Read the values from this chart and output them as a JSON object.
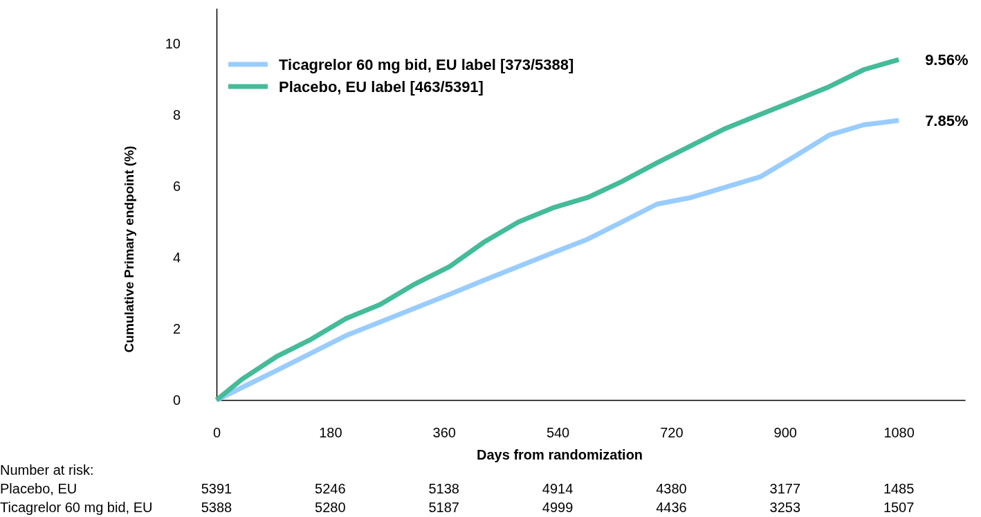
{
  "chart_data": {
    "type": "line",
    "xlabel": "Days from randomization",
    "ylabel": "Cumulative Primary endpoint (%)",
    "xlim": [
      0,
      1185
    ],
    "xticks": [
      0,
      180,
      360,
      540,
      720,
      900,
      1080
    ],
    "ylim": [
      0,
      11
    ],
    "yticks": [
      0,
      2,
      4,
      6,
      8,
      10
    ],
    "legend": "top left",
    "grid": false,
    "marker": "none",
    "line_style": "solid",
    "series": [
      {
        "name": "Ticagrelor 60 mg bid, EU label [373/5388]",
        "color": "#99ccff",
        "x": [
          0,
          40,
          95,
          150,
          205,
          259,
          314,
          369,
          423,
          478,
          533,
          588,
          642,
          697,
          752,
          806,
          861,
          916,
          970,
          1025,
          1080
        ],
        "values": [
          0,
          0.35,
          0.83,
          1.32,
          1.81,
          2.19,
          2.58,
          2.97,
          3.36,
          3.75,
          4.14,
          4.52,
          5.0,
          5.5,
          5.69,
          5.98,
          6.27,
          6.85,
          7.44,
          7.73,
          7.85
        ]
      },
      {
        "name": "Placebo, EU label [463/5391]",
        "color": "#44bb99",
        "x": [
          0,
          40,
          95,
          150,
          205,
          259,
          314,
          369,
          423,
          478,
          533,
          588,
          642,
          697,
          752,
          806,
          861,
          916,
          970,
          1025,
          1080
        ],
        "values": [
          0,
          0.58,
          1.22,
          1.71,
          2.29,
          2.68,
          3.26,
          3.75,
          4.43,
          5.0,
          5.4,
          5.69,
          6.14,
          6.66,
          7.15,
          7.63,
          8.02,
          8.41,
          8.8,
          9.28,
          9.56
        ]
      }
    ],
    "annotations": [
      {
        "text": "9.56%",
        "x": 1080,
        "y": 9.56
      },
      {
        "text": "7.85%",
        "x": 1080,
        "y": 7.85
      },
      "Number at risk:",
      "Placebo, EU",
      "5391",
      "5246",
      "5138",
      "4914",
      "4380",
      "3177",
      "1485",
      "Ticagrelor 60 mg bid, EU",
      "5388",
      "5280",
      "5187",
      "4999",
      "4436",
      "3253",
      "1507"
    ]
  }
}
